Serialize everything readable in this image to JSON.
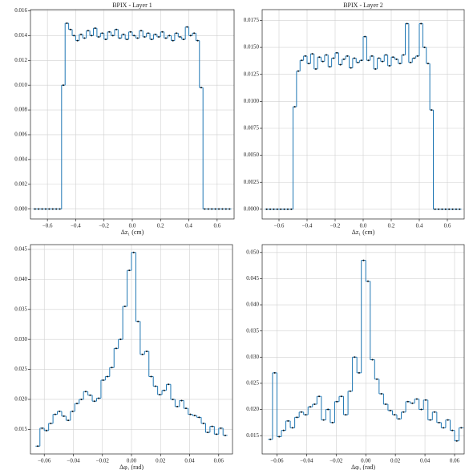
{
  "chart_data": [
    {
      "type": "histogram",
      "title": "BPIX - Layer 1",
      "xlabel": "Δz₁ (cm)",
      "color": "#1f77b4",
      "grid": true,
      "bins": [
        -0.7,
        -0.675,
        -0.65,
        -0.625,
        -0.6,
        -0.575,
        -0.55,
        -0.525,
        -0.5,
        -0.475,
        -0.45,
        -0.425,
        -0.4,
        -0.375,
        -0.35,
        -0.325,
        -0.3,
        -0.275,
        -0.25,
        -0.225,
        -0.2,
        -0.175,
        -0.15,
        -0.125,
        -0.1,
        -0.075,
        -0.05,
        -0.025,
        0,
        0.025,
        0.05,
        0.075,
        0.1,
        0.125,
        0.15,
        0.175,
        0.2,
        0.225,
        0.25,
        0.275,
        0.3,
        0.325,
        0.35,
        0.375,
        0.4,
        0.425,
        0.45,
        0.475,
        0.5,
        0.525,
        0.55,
        0.575,
        0.6,
        0.625,
        0.65,
        0.675,
        0.7
      ],
      "values": [
        0,
        0,
        0,
        0,
        0,
        0,
        0,
        0,
        0.01,
        0.015,
        0.0145,
        0.014,
        0.0136,
        0.0141,
        0.0138,
        0.0144,
        0.014,
        0.0146,
        0.0139,
        0.0142,
        0.0137,
        0.0143,
        0.014,
        0.0145,
        0.0138,
        0.0141,
        0.0137,
        0.0143,
        0.014,
        0.0138,
        0.0144,
        0.0139,
        0.0142,
        0.0137,
        0.0141,
        0.0139,
        0.0143,
        0.0138,
        0.014,
        0.0136,
        0.0142,
        0.0139,
        0.0137,
        0.0147,
        0.014,
        0.0142,
        0.0136,
        0.0098,
        0,
        0,
        0,
        0,
        0,
        0,
        0,
        0
      ],
      "xlim": [
        -0.72,
        0.72
      ],
      "ylim": [
        -0.0008,
        0.0161
      ],
      "xticks": [
        {
          "value": -0.6,
          "label": "−0.6"
        },
        {
          "value": -0.4,
          "label": "−0.4"
        },
        {
          "value": -0.2,
          "label": "−0.2"
        },
        {
          "value": 0,
          "label": "0.0"
        },
        0.2,
        0.4,
        0.6
      ],
      "yticks": [
        {
          "value": 0,
          "label": "0.000"
        },
        0.002,
        0.004,
        0.006,
        0.008,
        {
          "value": 0.01,
          "label": "0.010"
        },
        0.012,
        0.014,
        0.016
      ]
    },
    {
      "type": "histogram",
      "title": "BPIX - Layer 2",
      "xlabel": "Δz₁ (cm)",
      "color": "#1f77b4",
      "grid": true,
      "bins": [
        -0.7,
        -0.675,
        -0.65,
        -0.625,
        -0.6,
        -0.575,
        -0.55,
        -0.525,
        -0.5,
        -0.475,
        -0.45,
        -0.425,
        -0.4,
        -0.375,
        -0.35,
        -0.325,
        -0.3,
        -0.275,
        -0.25,
        -0.225,
        -0.2,
        -0.175,
        -0.15,
        -0.125,
        -0.1,
        -0.075,
        -0.05,
        -0.025,
        0,
        0.025,
        0.05,
        0.075,
        0.1,
        0.125,
        0.15,
        0.175,
        0.2,
        0.225,
        0.25,
        0.275,
        0.3,
        0.325,
        0.35,
        0.375,
        0.4,
        0.425,
        0.45,
        0.475,
        0.5,
        0.525,
        0.55,
        0.575,
        0.6,
        0.625,
        0.65,
        0.675,
        0.7
      ],
      "values": [
        0,
        0,
        0,
        0,
        0,
        0,
        0,
        0,
        0.0095,
        0.0128,
        0.0138,
        0.0142,
        0.0135,
        0.0144,
        0.013,
        0.0141,
        0.0137,
        0.0143,
        0.0132,
        0.014,
        0.0145,
        0.0134,
        0.0139,
        0.0142,
        0.0131,
        0.014,
        0.0136,
        0.0138,
        0.016,
        0.0138,
        0.0142,
        0.013,
        0.014,
        0.0137,
        0.0143,
        0.0133,
        0.0141,
        0.0139,
        0.0135,
        0.0143,
        0.0172,
        0.0136,
        0.014,
        0.0142,
        0.0172,
        0.015,
        0.0135,
        0.0092,
        0,
        0,
        0,
        0,
        0,
        0,
        0,
        0
      ],
      "xlim": [
        -0.72,
        0.72
      ],
      "ylim": [
        -0.0009,
        0.0185
      ],
      "xticks": [
        {
          "value": -0.6,
          "label": "−0.6"
        },
        {
          "value": -0.4,
          "label": "−0.4"
        },
        {
          "value": -0.2,
          "label": "−0.2"
        },
        {
          "value": 0,
          "label": "0.0"
        },
        0.2,
        0.4,
        0.6
      ],
      "yticks": [
        {
          "value": 0,
          "label": "0.0000"
        },
        0.0025,
        {
          "value": 0.005,
          "label": "0.0050"
        },
        0.0075,
        {
          "value": 0.01,
          "label": "0.0100"
        },
        0.0125,
        {
          "value": 0.015,
          "label": "0.0150"
        },
        0.0175
      ]
    },
    {
      "type": "histogram",
      "xlabel": "Δφ₁ (rad)",
      "color": "#1f77b4",
      "grid": true,
      "bins": [
        -0.066,
        -0.063,
        -0.06,
        -0.057,
        -0.054,
        -0.051,
        -0.048,
        -0.045,
        -0.042,
        -0.039,
        -0.036,
        -0.033,
        -0.03,
        -0.027,
        -0.024,
        -0.021,
        -0.018,
        -0.015,
        -0.012,
        -0.009,
        -0.006,
        -0.003,
        0,
        0.003,
        0.006,
        0.009,
        0.012,
        0.015,
        0.018,
        0.021,
        0.024,
        0.027,
        0.03,
        0.033,
        0.036,
        0.039,
        0.042,
        0.045,
        0.048,
        0.051,
        0.054,
        0.057,
        0.06,
        0.063,
        0.066
      ],
      "values": [
        0.0122,
        0.0152,
        0.0148,
        0.016,
        0.0175,
        0.018,
        0.0172,
        0.0165,
        0.018,
        0.0193,
        0.02,
        0.0213,
        0.0207,
        0.0197,
        0.0202,
        0.0232,
        0.0238,
        0.0253,
        0.0285,
        0.03,
        0.0355,
        0.0415,
        0.0445,
        0.033,
        0.0275,
        0.028,
        0.0238,
        0.0222,
        0.0208,
        0.0215,
        0.0225,
        0.02,
        0.0188,
        0.0198,
        0.0185,
        0.0175,
        0.0173,
        0.017,
        0.016,
        0.0145,
        0.0155,
        0.0142,
        0.0152,
        0.014
      ],
      "xlim": [
        -0.0695,
        0.0695
      ],
      "ylim": [
        0.0109,
        0.0458
      ],
      "xticks": [
        {
          "value": -0.06,
          "label": "−0.06"
        },
        {
          "value": -0.04,
          "label": "−0.04"
        },
        {
          "value": -0.02,
          "label": "−0.02"
        },
        {
          "value": 0,
          "label": "0.00"
        },
        0.02,
        0.04,
        0.06
      ],
      "yticks": [
        0.015,
        {
          "value": 0.02,
          "label": "0.020"
        },
        0.025,
        {
          "value": 0.03,
          "label": "0.030"
        },
        0.035,
        {
          "value": 0.04,
          "label": "0.040"
        },
        0.045
      ]
    },
    {
      "type": "histogram",
      "xlabel": "Δφ₁ (rad)",
      "color": "#1f77b4",
      "grid": true,
      "bins": [
        -0.066,
        -0.063,
        -0.06,
        -0.057,
        -0.054,
        -0.051,
        -0.048,
        -0.045,
        -0.042,
        -0.039,
        -0.036,
        -0.033,
        -0.03,
        -0.027,
        -0.024,
        -0.021,
        -0.018,
        -0.015,
        -0.012,
        -0.009,
        -0.006,
        -0.003,
        0,
        0.003,
        0.006,
        0.009,
        0.012,
        0.015,
        0.018,
        0.021,
        0.024,
        0.027,
        0.03,
        0.033,
        0.036,
        0.039,
        0.042,
        0.045,
        0.048,
        0.051,
        0.054,
        0.057,
        0.06,
        0.063,
        0.066
      ],
      "values": [
        0.0143,
        0.027,
        0.0148,
        0.016,
        0.0178,
        0.0165,
        0.0185,
        0.0195,
        0.019,
        0.0205,
        0.021,
        0.0225,
        0.018,
        0.02,
        0.0175,
        0.0215,
        0.0225,
        0.019,
        0.0235,
        0.03,
        0.027,
        0.0485,
        0.0445,
        0.0295,
        0.0258,
        0.023,
        0.021,
        0.0198,
        0.019,
        0.0182,
        0.0195,
        0.0215,
        0.0212,
        0.022,
        0.02,
        0.0218,
        0.018,
        0.0195,
        0.0175,
        0.0165,
        0.018,
        0.016,
        0.014,
        0.0165
      ],
      "xlim": [
        -0.07,
        0.0665
      ],
      "ylim": [
        0.0115,
        0.0515
      ],
      "xticks": [
        {
          "value": -0.06,
          "label": "−0.06"
        },
        {
          "value": -0.04,
          "label": "−0.04"
        },
        {
          "value": -0.02,
          "label": "−0.02"
        },
        {
          "value": 0,
          "label": "0.00"
        },
        0.02,
        0.04,
        0.06
      ],
      "yticks": [
        0.015,
        {
          "value": 0.02,
          "label": "0.020"
        },
        0.025,
        {
          "value": 0.03,
          "label": "0.030"
        },
        0.035,
        {
          "value": 0.04,
          "label": "0.040"
        },
        0.045,
        {
          "value": 0.05,
          "label": "0.050"
        }
      ]
    }
  ]
}
